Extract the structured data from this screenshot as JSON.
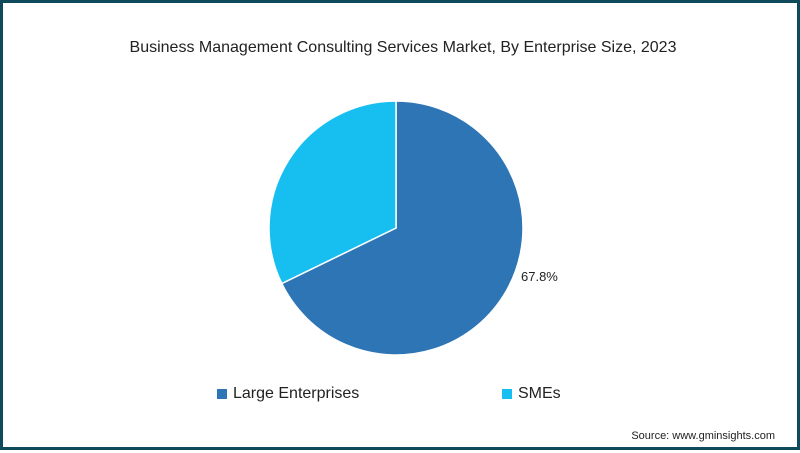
{
  "title": "Business Management Consulting Services Market, By Enterprise Size, 2023",
  "source": "Source: www.gminsights.com",
  "colors": {
    "large": "#2e75b6",
    "smes": "#17bff0",
    "border": "#0f4a5c"
  },
  "legend": [
    {
      "label": "Large Enterprises",
      "color": "#2e75b6"
    },
    {
      "label": "SMEs",
      "color": "#17bff0"
    }
  ],
  "data_label": "67.8%",
  "chart_data": {
    "type": "pie",
    "title": "Business Management Consulting Services Market, By Enterprise Size, 2023",
    "categories": [
      "Large Enterprises",
      "SMEs"
    ],
    "values": [
      67.8,
      32.2
    ],
    "data_labels": [
      "67.8%",
      ""
    ],
    "legend_position": "bottom",
    "source": "Source: www.gminsights.com"
  }
}
